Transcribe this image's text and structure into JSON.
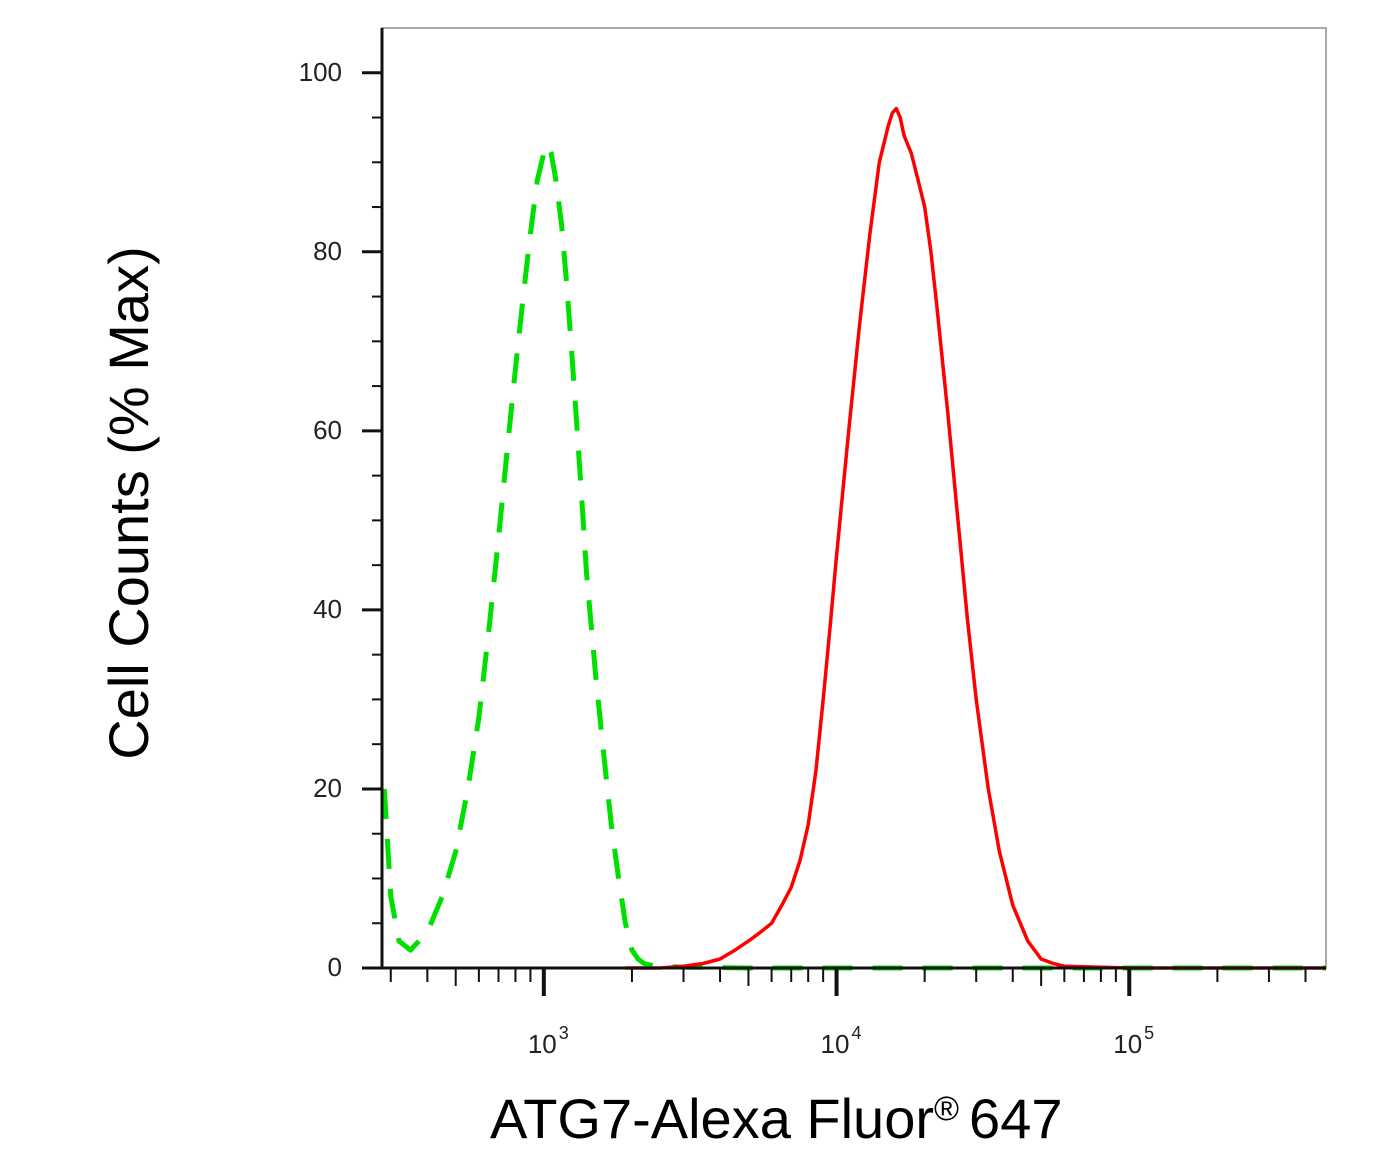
{
  "chart_data": {
    "type": "line",
    "title": "",
    "xlabel": "ATG7-Alexa Fluor",
    "xlabel_mark": "®",
    "xlabel_suffix": "647",
    "ylabel": "Cell Counts (% Max)",
    "x_scale": "log",
    "xlim": [
      280,
      470000
    ],
    "ylim": [
      0,
      105
    ],
    "y_ticks": [
      0,
      20,
      40,
      60,
      80,
      100
    ],
    "x_ticks": [
      {
        "value": 1000,
        "base": "10",
        "exp": "3"
      },
      {
        "value": 10000,
        "base": "10",
        "exp": "4"
      },
      {
        "value": 100000,
        "base": "10",
        "exp": "5"
      }
    ],
    "grid": false,
    "series": [
      {
        "color": "#00e000",
        "style": "dashed",
        "x": [
          285,
          300,
          320,
          350,
          400,
          450,
          500,
          550,
          600,
          650,
          700,
          750,
          800,
          850,
          900,
          950,
          1000,
          1030,
          1060,
          1100,
          1150,
          1200,
          1250,
          1300,
          1350,
          1400,
          1500,
          1600,
          1700,
          1800,
          1900,
          2000,
          2100,
          2200,
          2400,
          3000,
          5000,
          10000,
          20000,
          50000,
          100000,
          200000,
          470000
        ],
        "y": [
          20,
          8,
          3,
          2,
          4,
          8,
          13,
          20,
          28,
          38,
          48,
          58,
          67,
          75,
          82,
          88,
          91,
          92,
          91,
          88,
          83,
          76,
          68,
          60,
          52,
          44,
          33,
          24,
          16,
          10,
          5,
          2,
          1,
          0.5,
          0.2,
          0.1,
          0,
          0,
          0,
          0,
          0,
          0,
          0
        ]
      },
      {
        "color": "#ff0000",
        "style": "solid",
        "x": [
          1900,
          2500,
          3000,
          3500,
          4000,
          4500,
          5000,
          5500,
          6000,
          6500,
          7000,
          7500,
          8000,
          8500,
          9000,
          9500,
          10000,
          11000,
          12000,
          13000,
          14000,
          15000,
          15500,
          16000,
          16500,
          17000,
          18000,
          19000,
          20000,
          21000,
          22000,
          24000,
          26000,
          28000,
          30000,
          33000,
          36000,
          40000,
          45000,
          50000,
          55000,
          60000,
          100000,
          200000,
          470000
        ],
        "y": [
          0,
          0,
          0.2,
          0.5,
          1,
          2,
          3,
          4,
          5,
          7,
          9,
          12,
          16,
          22,
          30,
          38,
          46,
          60,
          72,
          82,
          90,
          94,
          95.5,
          96,
          95,
          93,
          91,
          88,
          85,
          80,
          74,
          62,
          50,
          39,
          30,
          20,
          13,
          7,
          3,
          1,
          0.5,
          0.2,
          0,
          0,
          0
        ]
      }
    ]
  }
}
